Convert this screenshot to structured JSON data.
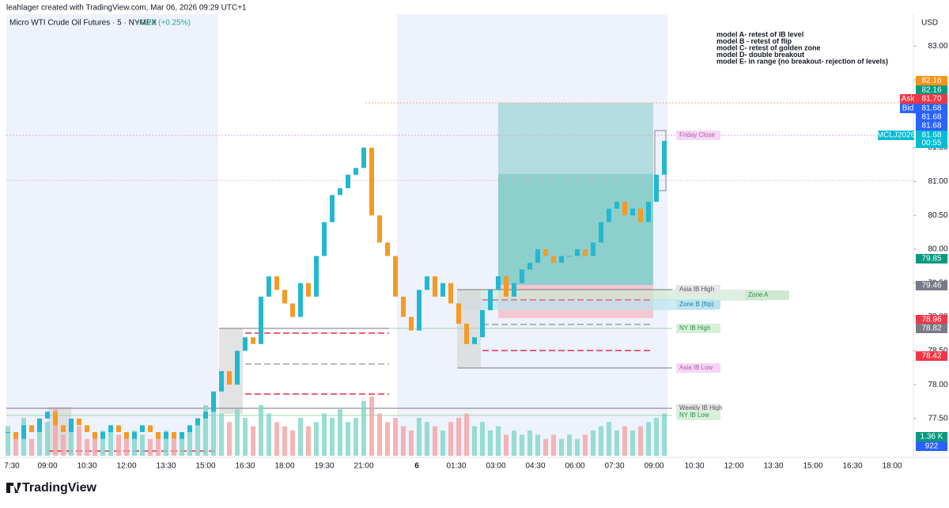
{
  "header": {
    "credit": "leahlager created with TradingView.com, Mar 06, 2026 09:29 UTC+1"
  },
  "chart_data": {
    "type": "candlestick",
    "title": "Micro WTI Crude Oil Futures · 5 · NYMEX",
    "change": "+0.20 (+0.25%)",
    "currency": "USD",
    "up_color": "#22b8cf",
    "down_color": "#f59a23",
    "ylim": [
      76.95,
      83.47
    ],
    "yticks": [
      {
        "value": 77.5,
        "label": "77.50"
      },
      {
        "value": 78,
        "label": "78.00"
      },
      {
        "value": 78.5,
        "label": "78.50"
      },
      {
        "value": 79,
        "label": "79.00"
      },
      {
        "value": 79.5,
        "label": "79.50"
      },
      {
        "value": 80,
        "label": "80.00"
      },
      {
        "value": 80.5,
        "label": "80.50"
      },
      {
        "value": 81,
        "label": "81.00"
      },
      {
        "value": 81.5,
        "label": "81.50"
      },
      {
        "value": 82,
        "label": "82.00"
      },
      {
        "value": 82.5,
        "label": "82.50"
      },
      {
        "value": 83,
        "label": "83.00"
      }
    ],
    "time_labels": [
      "7:30",
      "09:00",
      "10:30",
      "12:00",
      "13:30",
      "15:00",
      "16:30",
      "18:00",
      "19:30",
      "21:00",
      "6",
      "01:30",
      "03:00",
      "04:30",
      "06:00",
      "07:30",
      "09:00",
      "10:30",
      "12:00",
      "13:30",
      "15:00",
      "16:30",
      "18:00"
    ],
    "values": [
      77.3,
      77.2,
      77.4,
      77.3,
      77.5,
      77.6,
      77.4,
      77.3,
      77.5,
      77.4,
      77.3,
      77.2,
      77.3,
      77.4,
      77.3,
      77.2,
      77.3,
      77.4,
      77.3,
      77.2,
      77.3,
      77.2,
      77.3,
      77.4,
      77.5,
      77.6,
      77.9,
      78.2,
      78.0,
      78.5,
      78.7,
      78.6,
      79.3,
      79.6,
      79.4,
      79.2,
      79.0,
      79.5,
      79.3,
      79.9,
      80.4,
      80.8,
      80.9,
      81.1,
      81.2,
      81.5,
      80.5,
      80.1,
      79.9,
      79.3,
      79.0,
      78.8,
      79.4,
      79.6,
      79.3,
      79.5,
      79.2,
      78.9,
      78.6,
      78.7,
      79.1,
      79.4,
      79.6,
      79.3,
      79.5,
      79.7,
      79.8,
      80.0,
      79.9,
      79.8,
      79.9,
      79.9,
      80.0,
      79.9,
      80.1,
      80.4,
      80.6,
      80.7,
      80.5,
      80.6,
      80.4,
      80.7,
      81.1,
      81.6
    ],
    "volume": [
      700,
      500,
      900,
      400,
      600,
      800,
      1100,
      500,
      600,
      700,
      400,
      500,
      600,
      700,
      500,
      400,
      600,
      500,
      400,
      500,
      600,
      400,
      500,
      700,
      900,
      1200,
      1300,
      1000,
      800,
      1100,
      900,
      700,
      1200,
      1000,
      800,
      700,
      600,
      900,
      700,
      800,
      1000,
      900,
      1100,
      800,
      900,
      1300,
      1400,
      1000,
      800,
      900,
      700,
      600,
      900,
      800,
      700,
      600,
      800,
      900,
      1000,
      700,
      800,
      600,
      700,
      500,
      600,
      500,
      600,
      500,
      400,
      500,
      400,
      500,
      400,
      500,
      600,
      700,
      800,
      600,
      700,
      600,
      700,
      800,
      900,
      1000
    ],
    "level_labels": [
      "Friday Close",
      "Asia IB High",
      "Zone A",
      "Zone B (flip)",
      "NY IB High",
      "Asia IB Low",
      "Weekly IB High",
      "NY IB Low"
    ],
    "price_tags": [
      "82.16",
      "82.16",
      "Ask",
      "81.70",
      "Bid",
      "81.68",
      "81.68",
      "81.68",
      "MCLJ2026",
      "81.68",
      "00:55",
      "79.85",
      "79.46",
      "78.96",
      "78.82",
      "78.42",
      "1.36 K",
      "922"
    ],
    "notes": [
      "model A- retest of IB level",
      "model B - retest of flip",
      "model C- retest of golden zone",
      "model D- double breakout",
      "model E- in range (no breakout- rejection of levels)"
    ]
  },
  "footer": {
    "brand": "TradingView"
  }
}
